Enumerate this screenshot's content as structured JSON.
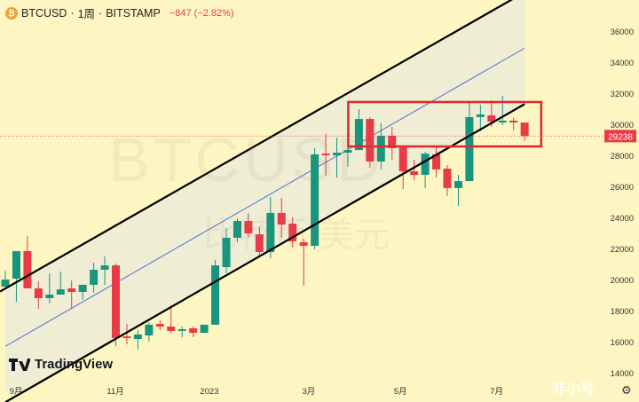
{
  "header": {
    "symbol": "BTCUSD",
    "sep1": "·",
    "interval": "1周",
    "sep2": "·",
    "exchange": "BITSTAMP",
    "change": "−847 (−2.82%)",
    "coin_icon": "bitcoin-icon"
  },
  "watermark": {
    "symbol": "BTCUSD",
    "pair": "比特币/美元"
  },
  "branding": {
    "tradingview": "TradingView",
    "corner_logo": "非小号"
  },
  "colors": {
    "up": "#17957e",
    "down": "#ea3947",
    "background": "#fdf6c3",
    "channel_fill": "#efedd4",
    "midline": "#4a6fd8",
    "box": "#e02a2a"
  },
  "chart_data": {
    "type": "candlestick",
    "interval": "1W",
    "ylim": [
      13000,
      37500
    ],
    "y_ticks": [
      36000,
      34000,
      32000,
      30000,
      28000,
      26000,
      24000,
      22000,
      20000,
      18000,
      16000,
      14000
    ],
    "x_ticks": [
      {
        "label": "9月",
        "index": 1
      },
      {
        "label": "11月",
        "index": 10
      },
      {
        "label": "2023",
        "index": 18.5
      },
      {
        "label": "3月",
        "index": 27.5
      },
      {
        "label": "5月",
        "index": 35.8
      },
      {
        "label": "7月",
        "index": 44.5
      }
    ],
    "last_price": 29238,
    "last_price_label": "29238",
    "candles_ohlc": [
      [
        19540,
        20570,
        19540,
        20000
      ],
      [
        20060,
        21830,
        18570,
        21830
      ],
      [
        21830,
        22800,
        19430,
        19430
      ],
      [
        19430,
        19890,
        18110,
        18800
      ],
      [
        18800,
        20400,
        18460,
        19030
      ],
      [
        19030,
        20510,
        19030,
        19370
      ],
      [
        19430,
        19940,
        18170,
        19200
      ],
      [
        19200,
        19660,
        18690,
        19660
      ],
      [
        19660,
        21090,
        19140,
        20630
      ],
      [
        20630,
        21490,
        19660,
        20910
      ],
      [
        20910,
        21030,
        15710,
        16230
      ],
      [
        16340,
        17140,
        15830,
        16230
      ],
      [
        16170,
        16740,
        15490,
        16460
      ],
      [
        16400,
        17260,
        16000,
        17090
      ],
      [
        17140,
        17370,
        16740,
        16970
      ],
      [
        16970,
        18340,
        16570,
        16690
      ],
      [
        16690,
        16970,
        16290,
        16800
      ],
      [
        16860,
        16970,
        16290,
        16570
      ],
      [
        16570,
        17090,
        16570,
        17090
      ],
      [
        17090,
        21260,
        17090,
        20910
      ],
      [
        20800,
        23310,
        20400,
        22690
      ],
      [
        22690,
        23940,
        22400,
        23770
      ],
      [
        23770,
        24290,
        22690,
        22970
      ],
      [
        22910,
        23430,
        21490,
        21770
      ],
      [
        21770,
        25310,
        21370,
        24290
      ],
      [
        24290,
        25260,
        22690,
        23540
      ],
      [
        23600,
        24000,
        22060,
        22460
      ],
      [
        22400,
        22630,
        19600,
        22170
      ],
      [
        22170,
        28460,
        21940,
        28060
      ],
      [
        28110,
        29370,
        26690,
        28000
      ],
      [
        28000,
        29140,
        26570,
        28170
      ],
      [
        28170,
        28860,
        27260,
        28340
      ],
      [
        28340,
        30970,
        28340,
        30340
      ],
      [
        30340,
        30460,
        27200,
        27600
      ],
      [
        27600,
        30060,
        27090,
        29260
      ],
      [
        29260,
        29830,
        27710,
        28460
      ],
      [
        28510,
        28510,
        25830,
        26970
      ],
      [
        26970,
        27710,
        26400,
        26740
      ],
      [
        26740,
        28230,
        25890,
        28110
      ],
      [
        28060,
        28510,
        26570,
        27090
      ],
      [
        27140,
        27370,
        25370,
        25890
      ],
      [
        25890,
        26740,
        24740,
        26340
      ],
      [
        26340,
        31430,
        26340,
        30460
      ],
      [
        30460,
        31260,
        29540,
        30630
      ],
      [
        30570,
        31540,
        29830,
        30170
      ],
      [
        30110,
        31830,
        29940,
        30230
      ],
      [
        30230,
        30400,
        29600,
        30110
      ],
      [
        30110,
        30110,
        28910,
        29238
      ]
    ],
    "annotations": {
      "channel_upper": [
        {
          "index": 1,
          "price": 19400
        },
        {
          "index": 48,
          "price": 38500
        }
      ],
      "channel_lower": [
        {
          "index": 1,
          "price": 12100
        },
        {
          "index": 48,
          "price": 31300
        }
      ],
      "channel_mid": [
        {
          "index": 1,
          "price": 15700
        },
        {
          "index": 48,
          "price": 34900
        }
      ],
      "box": {
        "from_index": 33,
        "to_index": 49.5,
        "top": 31430,
        "bottom": 28570
      }
    }
  }
}
